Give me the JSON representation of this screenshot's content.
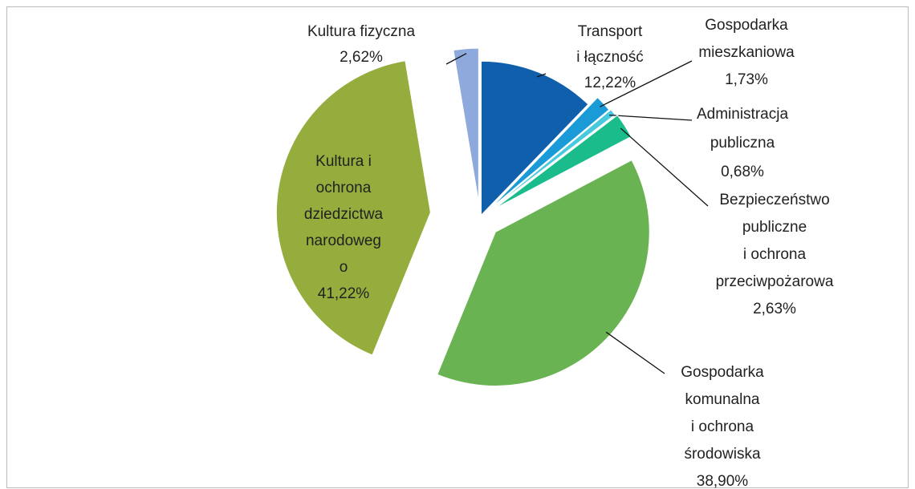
{
  "chart_data": {
    "type": "pie",
    "categories": [
      "Transport\ni łączność",
      "Gospodarka\nmieszkaniowa",
      "Administracja\npubliczna",
      "Bezpieczeństwo\npubliczne\ni ochrona\nprzeciwpożarowa",
      "Gospodarka\nkomunalna\ni ochrona\nśrodowiska",
      "Kultura i\nochrona\ndziedzictwa\nnarodoweg\no",
      "Kultura fizyczna"
    ],
    "values": [
      12.22,
      1.73,
      0.68,
      2.63,
      38.9,
      41.22,
      2.62
    ],
    "value_labels": [
      "12,22%",
      "1,73%",
      "0,68%",
      "2,63%",
      "38,90%",
      "41,22%",
      "2,62%"
    ],
    "colors": [
      "#0f5fad",
      "#1a9bd7",
      "#48c9de",
      "#1abc8c",
      "#6ab352",
      "#94ad3c",
      "#8ea9db"
    ]
  }
}
